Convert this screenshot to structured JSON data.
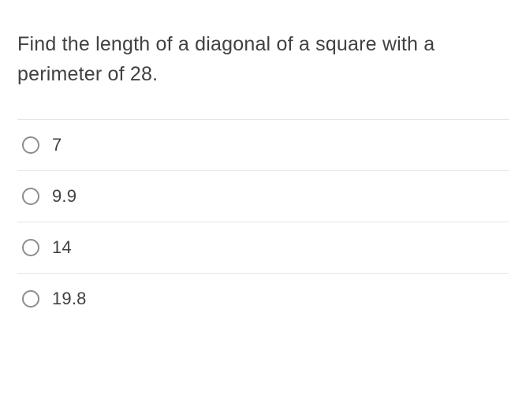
{
  "question": {
    "text": "Find the length of a diagonal of a square with a perimeter of 28.",
    "text_color": "#414141",
    "fontsize": 25
  },
  "options": [
    {
      "label": "7",
      "selected": false
    },
    {
      "label": "9.9",
      "selected": false
    },
    {
      "label": "14",
      "selected": false
    },
    {
      "label": "19.8",
      "selected": false
    }
  ],
  "styling": {
    "background_color": "#ffffff",
    "divider_color": "#e5e5e5",
    "radio_border_color": "#8d8d8d",
    "option_text_color": "#414141",
    "option_fontsize": 22
  }
}
